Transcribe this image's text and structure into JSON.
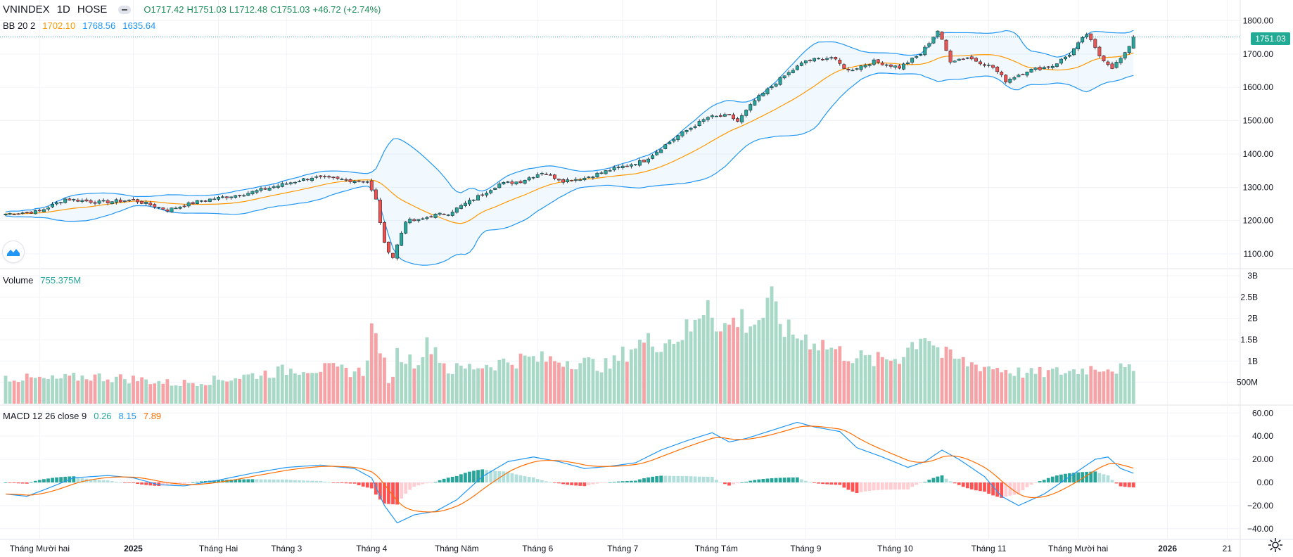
{
  "header": {
    "symbol": "VNINDEX",
    "interval": "1D",
    "exchange": "HOSE",
    "open": "O1717.42",
    "high": "H1751.03",
    "low": "L1712.48",
    "close": "C1751.03",
    "change": "+46.72 (+2.74%)"
  },
  "bb": {
    "label": "BB 20 2",
    "basis": "1702.10",
    "upper": "1768.56",
    "lower": "1635.64"
  },
  "volume": {
    "label": "Volume",
    "value": "755.375M"
  },
  "macd": {
    "label": "MACD 12 26 close 9",
    "hist": "0.26",
    "macd": "8.15",
    "signal": "7.89"
  },
  "last_price": "1751.03",
  "colors": {
    "up": "#26a69a",
    "down": "#ef5350",
    "bb_line": "#2196f3",
    "basis": "#ff9800",
    "macd_line": "#2196f3",
    "signal_line": "#ff6d00",
    "vol_up": "#a8d8c6",
    "vol_down": "#f5a3a6",
    "hist_up_strong": "#26a69a",
    "hist_up_weak": "#b2dfdb",
    "hist_down_strong": "#ff5252",
    "hist_down_weak": "#ffcdd2"
  },
  "chart_data": {
    "type": "candlestick",
    "price_axis": {
      "ticks": [
        "1800.00",
        "1700.00",
        "1600.00",
        "1500.00",
        "1400.00",
        "1300.00",
        "1200.00",
        "1100.00"
      ],
      "ylim": [
        1060,
        1820
      ]
    },
    "volume_axis": {
      "ticks": [
        "3B",
        "2.5B",
        "2B",
        "1.5B",
        "1B",
        "500M"
      ],
      "ylim": [
        0,
        3000
      ]
    },
    "macd_axis": {
      "ticks": [
        "60.00",
        "40.00",
        "20.00",
        "0.00",
        "−20.00",
        "−40.00"
      ],
      "ylim": [
        -45,
        62
      ]
    },
    "time_axis": [
      {
        "label": "Tháng Mười hai",
        "bold": false,
        "idx": 8
      },
      {
        "label": "2025",
        "bold": true,
        "idx": 30
      },
      {
        "label": "Tháng Hai",
        "bold": false,
        "idx": 50
      },
      {
        "label": "Tháng 3",
        "bold": false,
        "idx": 66
      },
      {
        "label": "Tháng 4",
        "bold": false,
        "idx": 86
      },
      {
        "label": "Tháng Năm",
        "bold": false,
        "idx": 106
      },
      {
        "label": "Tháng 6",
        "bold": false,
        "idx": 125
      },
      {
        "label": "Tháng 7",
        "bold": false,
        "idx": 145
      },
      {
        "label": "Tháng Tám",
        "bold": false,
        "idx": 167
      },
      {
        "label": "Tháng 9",
        "bold": false,
        "idx": 188
      },
      {
        "label": "Tháng 10",
        "bold": false,
        "idx": 209
      },
      {
        "label": "Tháng 11",
        "bold": false,
        "idx": 231
      },
      {
        "label": "Tháng Mười hai",
        "bold": false,
        "idx": 252
      },
      {
        "label": "2026",
        "bold": true,
        "idx": 273
      },
      {
        "label": "21",
        "bold": false,
        "idx": 287
      }
    ],
    "close_anchors": [
      [
        0,
        1220
      ],
      [
        8,
        1228
      ],
      [
        14,
        1265
      ],
      [
        22,
        1255
      ],
      [
        30,
        1262
      ],
      [
        38,
        1232
      ],
      [
        46,
        1260
      ],
      [
        56,
        1280
      ],
      [
        64,
        1305
      ],
      [
        72,
        1330
      ],
      [
        80,
        1322
      ],
      [
        85,
        1318
      ],
      [
        87,
        1262
      ],
      [
        89,
        1130
      ],
      [
        91,
        1090
      ],
      [
        94,
        1200
      ],
      [
        97,
        1200
      ],
      [
        100,
        1215
      ],
      [
        104,
        1222
      ],
      [
        110,
        1265
      ],
      [
        116,
        1310
      ],
      [
        121,
        1318
      ],
      [
        126,
        1345
      ],
      [
        131,
        1320
      ],
      [
        136,
        1328
      ],
      [
        142,
        1352
      ],
      [
        150,
        1380
      ],
      [
        158,
        1455
      ],
      [
        165,
        1510
      ],
      [
        170,
        1515
      ],
      [
        172,
        1498
      ],
      [
        176,
        1560
      ],
      [
        182,
        1625
      ],
      [
        188,
        1680
      ],
      [
        194,
        1690
      ],
      [
        198,
        1650
      ],
      [
        204,
        1678
      ],
      [
        210,
        1660
      ],
      [
        215,
        1700
      ],
      [
        219,
        1770
      ],
      [
        222,
        1680
      ],
      [
        226,
        1690
      ],
      [
        232,
        1660
      ],
      [
        235,
        1620
      ],
      [
        240,
        1650
      ],
      [
        246,
        1665
      ],
      [
        250,
        1700
      ],
      [
        254,
        1760
      ],
      [
        257,
        1695
      ],
      [
        260,
        1660
      ],
      [
        263,
        1700
      ],
      [
        265,
        1751
      ]
    ],
    "volume_anchors": [
      [
        0,
        620
      ],
      [
        10,
        560
      ],
      [
        20,
        640
      ],
      [
        30,
        580
      ],
      [
        40,
        470
      ],
      [
        50,
        560
      ],
      [
        60,
        700
      ],
      [
        70,
        840
      ],
      [
        80,
        780
      ],
      [
        84,
        740
      ],
      [
        86,
        1700
      ],
      [
        88,
        1400
      ],
      [
        90,
        420
      ],
      [
        92,
        1150
      ],
      [
        96,
        1000
      ],
      [
        100,
        1450
      ],
      [
        104,
        780
      ],
      [
        112,
        900
      ],
      [
        122,
        1050
      ],
      [
        132,
        1020
      ],
      [
        142,
        880
      ],
      [
        148,
        1400
      ],
      [
        156,
        1500
      ],
      [
        162,
        1800
      ],
      [
        165,
        2600
      ],
      [
        168,
        1700
      ],
      [
        172,
        2000
      ],
      [
        176,
        1900
      ],
      [
        180,
        2300
      ],
      [
        184,
        1650
      ],
      [
        190,
        1500
      ],
      [
        196,
        1200
      ],
      [
        204,
        1000
      ],
      [
        210,
        1100
      ],
      [
        216,
        1700
      ],
      [
        220,
        1150
      ],
      [
        226,
        950
      ],
      [
        232,
        850
      ],
      [
        240,
        700
      ],
      [
        250,
        760
      ],
      [
        258,
        880
      ],
      [
        265,
        755
      ]
    ],
    "macd_anchors": [
      [
        0,
        -10
      ],
      [
        5,
        -12
      ],
      [
        10,
        -5
      ],
      [
        16,
        4
      ],
      [
        24,
        6
      ],
      [
        30,
        4
      ],
      [
        36,
        -2
      ],
      [
        42,
        -3
      ],
      [
        50,
        2
      ],
      [
        58,
        8
      ],
      [
        66,
        13
      ],
      [
        74,
        15
      ],
      [
        82,
        12
      ],
      [
        86,
        4
      ],
      [
        89,
        -20
      ],
      [
        92,
        -35
      ],
      [
        96,
        -28
      ],
      [
        101,
        -25
      ],
      [
        106,
        -15
      ],
      [
        112,
        5
      ],
      [
        118,
        18
      ],
      [
        124,
        22
      ],
      [
        130,
        18
      ],
      [
        136,
        12
      ],
      [
        142,
        14
      ],
      [
        148,
        17
      ],
      [
        154,
        28
      ],
      [
        160,
        36
      ],
      [
        166,
        43
      ],
      [
        170,
        35
      ],
      [
        174,
        38
      ],
      [
        180,
        45
      ],
      [
        186,
        52
      ],
      [
        190,
        48
      ],
      [
        196,
        44
      ],
      [
        200,
        30
      ],
      [
        206,
        22
      ],
      [
        212,
        13
      ],
      [
        216,
        18
      ],
      [
        220,
        28
      ],
      [
        224,
        20
      ],
      [
        230,
        5
      ],
      [
        234,
        -12
      ],
      [
        238,
        -20
      ],
      [
        244,
        -10
      ],
      [
        250,
        5
      ],
      [
        256,
        20
      ],
      [
        259,
        22
      ],
      [
        262,
        12
      ],
      [
        265,
        8
      ]
    ]
  }
}
